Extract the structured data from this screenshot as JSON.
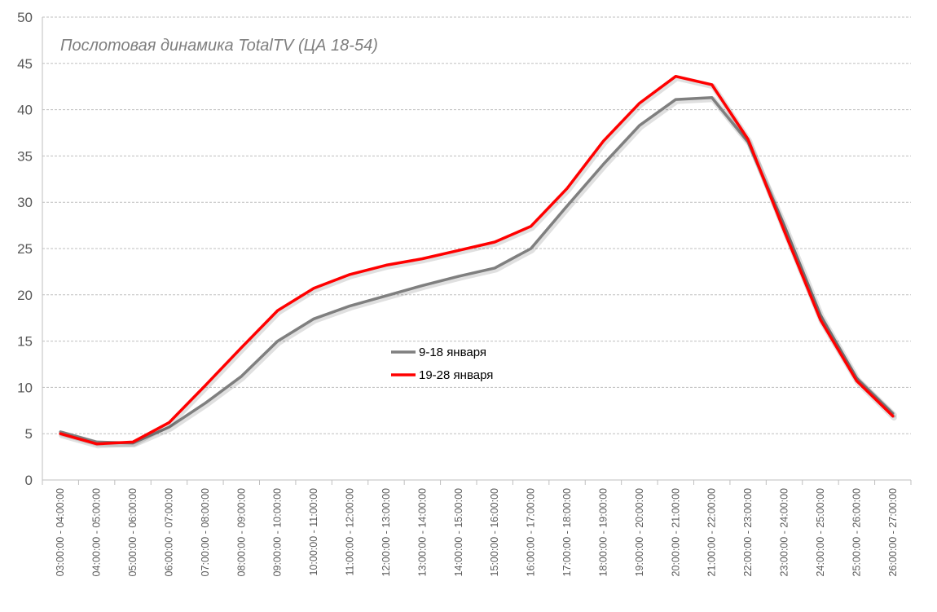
{
  "chart_data": {
    "type": "line",
    "title": "Послотовая динамика TotalTV  (ЦА 18-54)",
    "xlabel": "",
    "ylabel": "",
    "ylim": [
      0,
      50
    ],
    "yticks": [
      0,
      5,
      10,
      15,
      20,
      25,
      30,
      35,
      40,
      45,
      50
    ],
    "grid": true,
    "legend_position": "center",
    "categories": [
      "03:00:00 - 04:00:00",
      "04:00:00 - 05:00:00",
      "05:00:00 - 06:00:00",
      "06:00:00 - 07:00:00",
      "07:00:00 - 08:00:00",
      "08:00:00 - 09:00:00",
      "09:00:00 - 10:00:00",
      "10:00:00 - 11:00:00",
      "11:00:00 - 12:00:00",
      "12:00:00 - 13:00:00",
      "13:00:00 - 14:00:00",
      "14:00:00 - 15:00:00",
      "15:00:00 - 16:00:00",
      "16:00:00 - 17:00:00",
      "17:00:00 - 18:00:00",
      "18:00:00 - 19:00:00",
      "19:00:00 - 20:00:00",
      "20:00:00 - 21:00:00",
      "21:00:00 - 22:00:00",
      "22:00:00 - 23:00:00",
      "23:00:00 - 24:00:00",
      "24:00:00 - 25:00:00",
      "25:00:00 - 26:00:00",
      "26:00:00 - 27:00:00"
    ],
    "series": [
      {
        "name": "9-18 января",
        "color": "#7f7f7f",
        "values": [
          5.2,
          4.1,
          4.0,
          5.7,
          8.3,
          11.2,
          15.0,
          17.4,
          18.8,
          19.9,
          21.0,
          22.0,
          22.9,
          25.0,
          29.6,
          34.1,
          38.3,
          41.1,
          41.3,
          36.5,
          27.5,
          17.8,
          11.0,
          7.2
        ]
      },
      {
        "name": "19-28 января",
        "color": "#ff0000",
        "values": [
          5.0,
          3.9,
          4.1,
          6.2,
          10.2,
          14.3,
          18.3,
          20.7,
          22.2,
          23.2,
          23.9,
          24.8,
          25.7,
          27.4,
          31.5,
          36.6,
          40.7,
          43.6,
          42.7,
          36.8,
          26.9,
          17.3,
          10.7,
          6.9
        ]
      }
    ]
  }
}
